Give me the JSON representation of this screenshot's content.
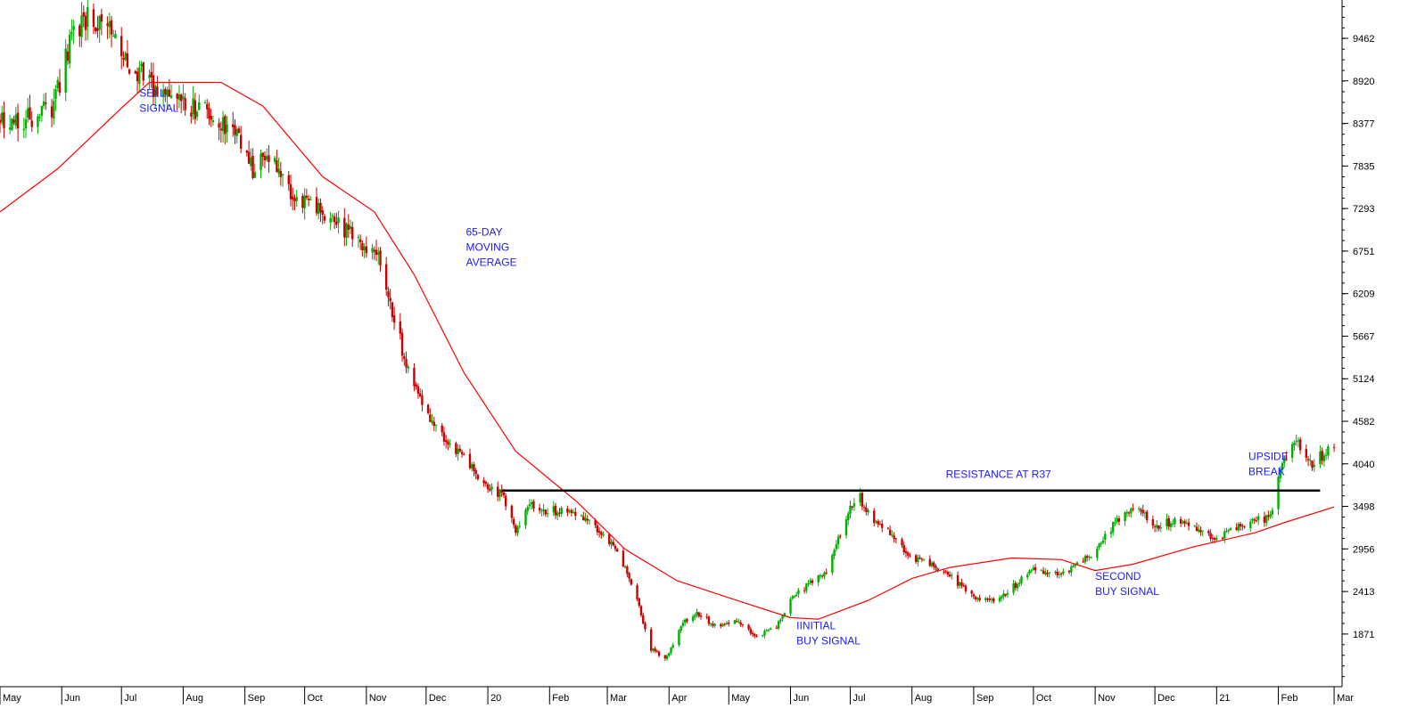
{
  "chart_data": {
    "type": "candlestick",
    "title": "",
    "xlabel": "",
    "ylabel": "",
    "ylim": [
      1200,
      9950
    ],
    "x_range": [
      "2019-05-01",
      "2021-03-05"
    ],
    "y_ticks": [
      1871,
      2413,
      2956,
      3498,
      4040,
      4582,
      5124,
      5667,
      6209,
      6751,
      7293,
      7835,
      8377,
      8920,
      9462
    ],
    "x_ticks": [
      {
        "label": "May",
        "date": "2019-05-01"
      },
      {
        "label": "Jun",
        "date": "2019-06-01"
      },
      {
        "label": "Jul",
        "date": "2019-07-01"
      },
      {
        "label": "Aug",
        "date": "2019-08-01"
      },
      {
        "label": "Sep",
        "date": "2019-09-01"
      },
      {
        "label": "Oct",
        "date": "2019-10-01"
      },
      {
        "label": "Nov",
        "date": "2019-11-01"
      },
      {
        "label": "Dec",
        "date": "2019-12-01"
      },
      {
        "label": "20",
        "date": "2020-01-01"
      },
      {
        "label": "Feb",
        "date": "2020-02-01"
      },
      {
        "label": "Mar",
        "date": "2020-03-01"
      },
      {
        "label": "Apr",
        "date": "2020-04-01"
      },
      {
        "label": "May",
        "date": "2020-05-01"
      },
      {
        "label": "Jun",
        "date": "2020-06-01"
      },
      {
        "label": "Jul",
        "date": "2020-07-01"
      },
      {
        "label": "Aug",
        "date": "2020-08-01"
      },
      {
        "label": "Sep",
        "date": "2020-09-01"
      },
      {
        "label": "Oct",
        "date": "2020-10-01"
      },
      {
        "label": "Nov",
        "date": "2020-11-01"
      },
      {
        "label": "Dec",
        "date": "2020-12-01"
      },
      {
        "label": "21",
        "date": "2021-01-01"
      },
      {
        "label": "Feb",
        "date": "2021-02-01"
      },
      {
        "label": "Mar",
        "date": "2021-03-01"
      }
    ],
    "price_path": [
      [
        "2019-05-01",
        8450
      ],
      [
        "2019-05-15",
        8450
      ],
      [
        "2019-05-28",
        8600
      ],
      [
        "2019-06-05",
        9400
      ],
      [
        "2019-06-12",
        9700
      ],
      [
        "2019-06-22",
        9650
      ],
      [
        "2019-07-01",
        9300
      ],
      [
        "2019-07-12",
        8950
      ],
      [
        "2019-07-22",
        8750
      ],
      [
        "2019-08-01",
        8600
      ],
      [
        "2019-08-15",
        8500
      ],
      [
        "2019-08-28",
        8200
      ],
      [
        "2019-09-05",
        7800
      ],
      [
        "2019-09-15",
        7950
      ],
      [
        "2019-09-25",
        7500
      ],
      [
        "2019-10-05",
        7300
      ],
      [
        "2019-10-15",
        7100
      ],
      [
        "2019-10-25",
        6950
      ],
      [
        "2019-11-01",
        6800
      ],
      [
        "2019-11-08",
        6600
      ],
      [
        "2019-11-15",
        5900
      ],
      [
        "2019-11-22",
        5200
      ],
      [
        "2019-12-01",
        4700
      ],
      [
        "2019-12-10",
        4400
      ],
      [
        "2019-12-20",
        4100
      ],
      [
        "2020-01-01",
        3700
      ],
      [
        "2020-01-08",
        3650
      ],
      [
        "2020-01-15",
        3200
      ],
      [
        "2020-01-22",
        3500
      ],
      [
        "2020-01-30",
        3450
      ],
      [
        "2020-02-10",
        3420
      ],
      [
        "2020-02-20",
        3350
      ],
      [
        "2020-03-01",
        3100
      ],
      [
        "2020-03-08",
        2800
      ],
      [
        "2020-03-15",
        2400
      ],
      [
        "2020-03-22",
        1700
      ],
      [
        "2020-03-30",
        1550
      ],
      [
        "2020-04-08",
        2000
      ],
      [
        "2020-04-15",
        2150
      ],
      [
        "2020-04-25",
        1950
      ],
      [
        "2020-05-05",
        2050
      ],
      [
        "2020-05-15",
        1850
      ],
      [
        "2020-05-25",
        1950
      ],
      [
        "2020-06-01",
        2300
      ],
      [
        "2020-06-10",
        2500
      ],
      [
        "2020-06-20",
        2700
      ],
      [
        "2020-07-01",
        3500
      ],
      [
        "2020-07-05",
        3650
      ],
      [
        "2020-07-12",
        3300
      ],
      [
        "2020-07-20",
        3200
      ],
      [
        "2020-08-01",
        2850
      ],
      [
        "2020-08-10",
        2750
      ],
      [
        "2020-08-20",
        2600
      ],
      [
        "2020-09-01",
        2350
      ],
      [
        "2020-09-10",
        2280
      ],
      [
        "2020-09-20",
        2450
      ],
      [
        "2020-10-01",
        2700
      ],
      [
        "2020-10-10",
        2650
      ],
      [
        "2020-10-20",
        2700
      ],
      [
        "2020-11-01",
        2900
      ],
      [
        "2020-11-10",
        3250
      ],
      [
        "2020-11-20",
        3500
      ],
      [
        "2020-12-01",
        3250
      ],
      [
        "2020-12-10",
        3300
      ],
      [
        "2020-12-20",
        3250
      ],
      [
        "2021-01-01",
        3100
      ],
      [
        "2021-01-10",
        3200
      ],
      [
        "2021-01-20",
        3300
      ],
      [
        "2021-01-28",
        3350
      ],
      [
        "2021-02-03",
        4100
      ],
      [
        "2021-02-10",
        4300
      ],
      [
        "2021-02-18",
        4050
      ],
      [
        "2021-02-26",
        4200
      ],
      [
        "2021-03-01",
        4250
      ]
    ],
    "moving_average": {
      "name": "65-DAY MOVING AVERAGE",
      "color": "#ff0000",
      "points": [
        [
          "2019-05-01",
          7250
        ],
        [
          "2019-05-30",
          7800
        ],
        [
          "2019-06-30",
          8550
        ],
        [
          "2019-07-15",
          8900
        ],
        [
          "2019-08-20",
          8900
        ],
        [
          "2019-09-10",
          8600
        ],
        [
          "2019-10-10",
          7700
        ],
        [
          "2019-11-05",
          7250
        ],
        [
          "2019-11-25",
          6450
        ],
        [
          "2019-12-20",
          5200
        ],
        [
          "2020-01-15",
          4200
        ],
        [
          "2020-02-15",
          3550
        ],
        [
          "2020-03-10",
          2950
        ],
        [
          "2020-04-05",
          2550
        ],
        [
          "2020-05-05",
          2300
        ],
        [
          "2020-06-01",
          2080
        ],
        [
          "2020-06-15",
          2060
        ],
        [
          "2020-07-10",
          2300
        ],
        [
          "2020-08-01",
          2580
        ],
        [
          "2020-08-20",
          2720
        ],
        [
          "2020-09-20",
          2840
        ],
        [
          "2020-10-15",
          2820
        ],
        [
          "2020-11-01",
          2680
        ],
        [
          "2020-11-20",
          2760
        ],
        [
          "2020-12-20",
          2980
        ],
        [
          "2021-01-20",
          3160
        ],
        [
          "2021-02-05",
          3300
        ],
        [
          "2021-03-01",
          3490
        ]
      ]
    },
    "resistance_line": {
      "label": "RESISTANCE AT R37",
      "value": 3700,
      "color": "#000000",
      "from": "2020-01-08",
      "to": "2021-02-22"
    },
    "annotations": [
      {
        "lines": [
          "SELL",
          "SIGNAL"
        ],
        "date": "2019-07-10",
        "value": 8720
      },
      {
        "lines": [
          "65-DAY",
          "MOVING",
          "AVERAGE"
        ],
        "date": "2019-12-21",
        "value": 6950
      },
      {
        "lines": [
          "RESISTANCE AT R37"
        ],
        "date": "2020-08-18",
        "value": 3860
      },
      {
        "lines": [
          "IINITIAL",
          "BUY SIGNAL"
        ],
        "date": "2020-06-04",
        "value": 1930
      },
      {
        "lines": [
          "SECOND",
          "BUY SIGNAL"
        ],
        "date": "2020-11-01",
        "value": 2560
      },
      {
        "lines": [
          "UPSIDE",
          "BREAK"
        ],
        "date": "2021-01-17",
        "value": 4090
      }
    ],
    "colors": {
      "up_candle": "#00b000",
      "down_candle": "#cc0000",
      "annotation_text": "#1a1aff",
      "axis": "#000000"
    },
    "grid": false
  }
}
